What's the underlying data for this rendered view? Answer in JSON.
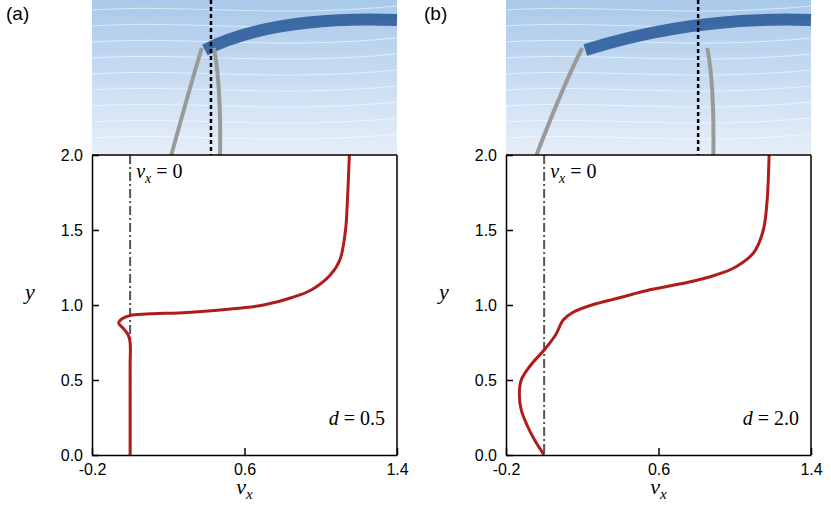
{
  "chart_data": [
    {
      "type": "line",
      "panel": "(a)",
      "xlabel": {
        "text": "v",
        "subscript": "x"
      },
      "ylabel": "y",
      "xlim": [
        -0.2,
        1.4
      ],
      "xticks": [
        -0.2,
        0.6,
        1.4
      ],
      "ylim": [
        0,
        2
      ],
      "yticks": [
        {
          "value": 0,
          "label": "0.0"
        },
        0.5,
        {
          "value": 1,
          "label": "1.0"
        },
        1.5,
        {
          "value": 2,
          "label": "2.0"
        }
      ],
      "reference_line": {
        "x": 0,
        "text": "v",
        "subscript": "x",
        "suffix": " = 0"
      },
      "annotation": {
        "symbol": "d",
        "text": " = 0.5"
      },
      "series": [
        {
          "color": "#b01c1c",
          "x": [
            0.0,
            0.0,
            0.0,
            0.0,
            -0.01,
            -0.04,
            -0.06,
            -0.04,
            0.0,
            0.3,
            0.5,
            0.7,
            0.85,
            0.95,
            1.05,
            1.1,
            1.13,
            1.14,
            1.15
          ],
          "y": [
            0.0,
            0.3,
            0.6,
            0.75,
            0.8,
            0.85,
            0.88,
            0.91,
            0.93,
            0.95,
            0.97,
            1.0,
            1.05,
            1.1,
            1.2,
            1.3,
            1.5,
            1.7,
            2.0
          ]
        }
      ]
    },
    {
      "type": "line",
      "panel": "(b)",
      "xlabel": {
        "text": "v",
        "subscript": "x"
      },
      "ylabel": "y",
      "xlim": [
        -0.2,
        1.4
      ],
      "xticks": [
        -0.2,
        0.6,
        1.4
      ],
      "ylim": [
        0,
        2
      ],
      "yticks": [
        {
          "value": 0,
          "label": "0.0"
        },
        0.5,
        {
          "value": 1,
          "label": "1.0"
        },
        1.5,
        {
          "value": 2,
          "label": "2.0"
        }
      ],
      "reference_line": {
        "x": 0,
        "text": "v",
        "subscript": "x",
        "suffix": " = 0"
      },
      "annotation": {
        "symbol": "d",
        "text": " = 2.0"
      },
      "series": [
        {
          "color": "#b01c1c",
          "x": [
            0.0,
            -0.05,
            -0.09,
            -0.12,
            -0.13,
            -0.12,
            -0.07,
            0.0,
            0.06,
            0.1,
            0.15,
            0.25,
            0.4,
            0.55,
            0.75,
            0.9,
            1.0,
            1.1,
            1.15,
            1.17,
            1.18
          ],
          "y": [
            0.0,
            0.1,
            0.2,
            0.3,
            0.4,
            0.5,
            0.6,
            0.7,
            0.8,
            0.9,
            0.95,
            1.0,
            1.05,
            1.1,
            1.15,
            1.2,
            1.25,
            1.35,
            1.5,
            1.7,
            2.0
          ]
        }
      ]
    }
  ]
}
